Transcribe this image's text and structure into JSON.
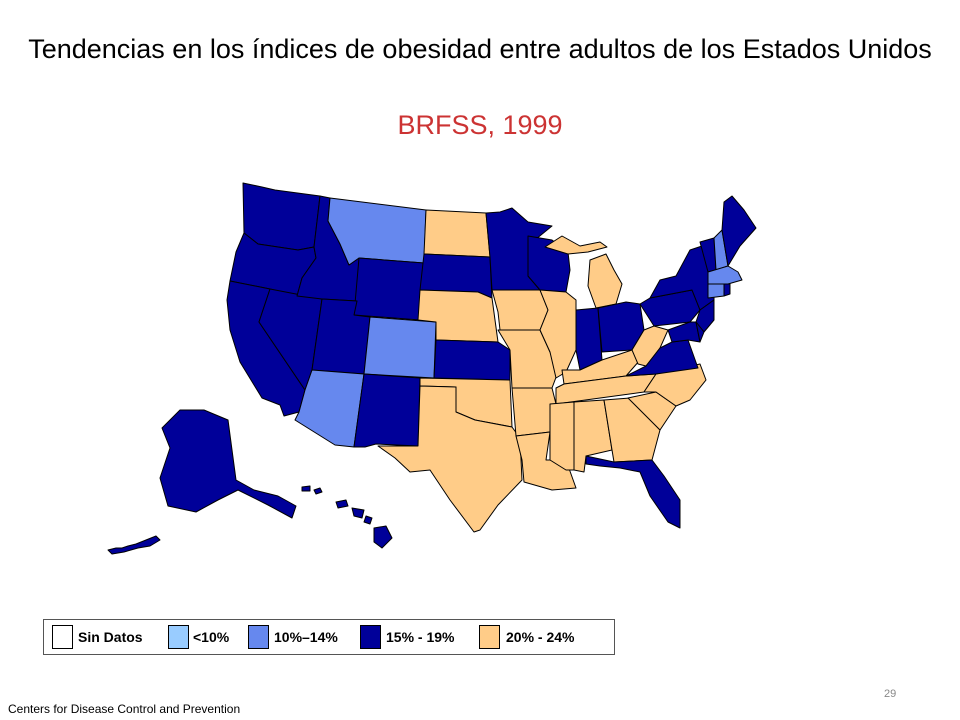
{
  "title": "Tendencias en los índices de obesidad entre adultos de los Estados Unidos",
  "subtitle": "BRFSS, 1999",
  "colors": {
    "no_data": "#ffffff",
    "lt10": "#99ccff",
    "r10_14": "#6688ee",
    "r15_19": "#000099",
    "r20_24": "#ffcc88",
    "subtitle": "#cc3333"
  },
  "legend": [
    {
      "label": "Sin Datos",
      "color": "#ffffff"
    },
    {
      "label": "<10%",
      "color": "#99ccff"
    },
    {
      "label": "10%–14%",
      "color": "#6688ee"
    },
    {
      "label": "15% - 19%",
      "color": "#000099"
    },
    {
      "label": "20% - 24%",
      "color": "#ffcc88"
    }
  ],
  "states": {
    "r10_14": [
      "MT",
      "CO",
      "AZ",
      "MA",
      "CT",
      "NH"
    ],
    "r20_24": [
      "ND",
      "NE",
      "IA",
      "MO",
      "IL",
      "MI",
      "KY",
      "WV",
      "TN",
      "NC",
      "SC",
      "GA",
      "AL",
      "MS",
      "AR",
      "LA",
      "OK",
      "TX"
    ],
    "r15_19": [
      "WA",
      "OR",
      "CA",
      "NV",
      "ID",
      "WY",
      "UT",
      "NM",
      "SD",
      "KS",
      "MN",
      "WI",
      "IN",
      "OH",
      "PA",
      "NY",
      "VT",
      "ME",
      "NJ",
      "DE",
      "MD",
      "VA",
      "FL",
      "RI",
      "AK",
      "HI"
    ]
  },
  "footer": "Centers  for Disease Control and Prevention",
  "page_number": "29"
}
